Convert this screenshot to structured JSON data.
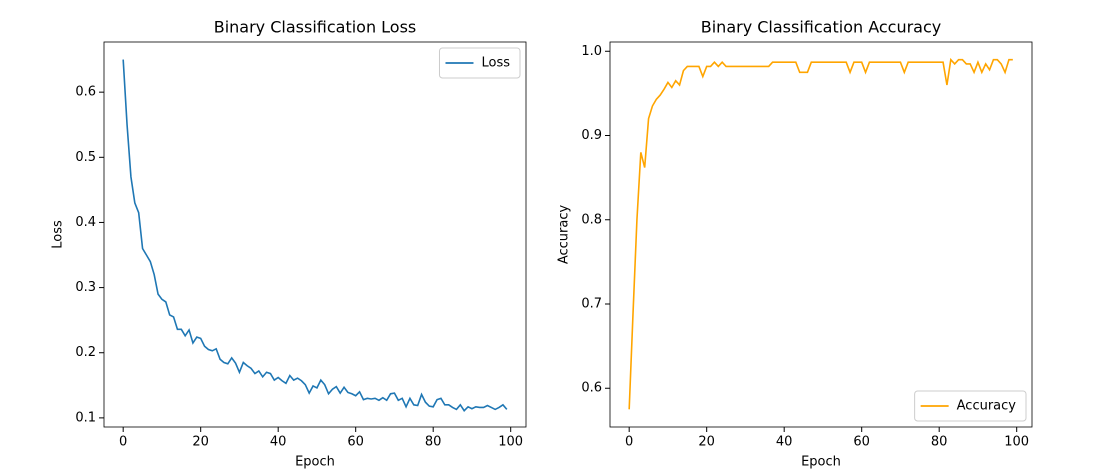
{
  "chart_data": [
    {
      "type": "line",
      "title": "Binary Classification Loss",
      "xlabel": "Epoch",
      "ylabel": "Loss",
      "x": [
        0,
        1,
        2,
        3,
        4,
        5,
        6,
        7,
        8,
        9,
        10,
        11,
        12,
        13,
        14,
        15,
        16,
        17,
        18,
        19,
        20,
        21,
        22,
        23,
        24,
        25,
        26,
        27,
        28,
        29,
        30,
        31,
        32,
        33,
        34,
        35,
        36,
        37,
        38,
        39,
        40,
        41,
        42,
        43,
        44,
        45,
        46,
        47,
        48,
        49,
        50,
        51,
        52,
        53,
        54,
        55,
        56,
        57,
        58,
        59,
        60,
        61,
        62,
        63,
        64,
        65,
        66,
        67,
        68,
        69,
        70,
        71,
        72,
        73,
        74,
        75,
        76,
        77,
        78,
        79,
        80,
        81,
        82,
        83,
        84,
        85,
        86,
        87,
        88,
        89,
        90,
        91,
        92,
        93,
        94,
        95,
        96,
        97,
        98,
        99
      ],
      "series": [
        {
          "name": "Loss",
          "color": "#1f77b4",
          "values": [
            0.65,
            0.55,
            0.47,
            0.43,
            0.415,
            0.36,
            0.35,
            0.34,
            0.32,
            0.29,
            0.282,
            0.278,
            0.258,
            0.255,
            0.236,
            0.236,
            0.226,
            0.235,
            0.215,
            0.224,
            0.222,
            0.21,
            0.205,
            0.203,
            0.206,
            0.19,
            0.185,
            0.183,
            0.192,
            0.184,
            0.17,
            0.185,
            0.18,
            0.176,
            0.168,
            0.172,
            0.163,
            0.17,
            0.168,
            0.158,
            0.162,
            0.157,
            0.153,
            0.165,
            0.158,
            0.161,
            0.157,
            0.151,
            0.138,
            0.149,
            0.146,
            0.158,
            0.151,
            0.137,
            0.144,
            0.148,
            0.138,
            0.147,
            0.139,
            0.137,
            0.134,
            0.14,
            0.128,
            0.13,
            0.129,
            0.13,
            0.127,
            0.131,
            0.127,
            0.137,
            0.138,
            0.127,
            0.13,
            0.117,
            0.13,
            0.12,
            0.119,
            0.136,
            0.124,
            0.118,
            0.117,
            0.128,
            0.13,
            0.12,
            0.12,
            0.116,
            0.113,
            0.12,
            0.111,
            0.117,
            0.114,
            0.117,
            0.116,
            0.116,
            0.119,
            0.116,
            0.113,
            0.116,
            0.12,
            0.113
          ]
        }
      ],
      "xlim": [
        -4.95,
        103.95
      ],
      "ylim": [
        0.086,
        0.677
      ],
      "xticks": [
        0,
        20,
        40,
        60,
        80,
        100
      ],
      "yticks": [
        0.1,
        0.2,
        0.3,
        0.4,
        0.5,
        0.6
      ],
      "legend": "upper right"
    },
    {
      "type": "line",
      "title": "Binary Classification Accuracy",
      "xlabel": "Epoch",
      "ylabel": "Accuracy",
      "x": [
        0,
        1,
        2,
        3,
        4,
        5,
        6,
        7,
        8,
        9,
        10,
        11,
        12,
        13,
        14,
        15,
        16,
        17,
        18,
        19,
        20,
        21,
        22,
        23,
        24,
        25,
        26,
        27,
        28,
        29,
        30,
        31,
        32,
        33,
        34,
        35,
        36,
        37,
        38,
        39,
        40,
        41,
        42,
        43,
        44,
        45,
        46,
        47,
        48,
        49,
        50,
        51,
        52,
        53,
        54,
        55,
        56,
        57,
        58,
        59,
        60,
        61,
        62,
        63,
        64,
        65,
        66,
        67,
        68,
        69,
        70,
        71,
        72,
        73,
        74,
        75,
        76,
        77,
        78,
        79,
        80,
        81,
        82,
        83,
        84,
        85,
        86,
        87,
        88,
        89,
        90,
        91,
        92,
        93,
        94,
        95,
        96,
        97,
        98,
        99
      ],
      "series": [
        {
          "name": "Accuracy",
          "color": "#ffa500",
          "values": [
            0.575,
            0.69,
            0.8,
            0.88,
            0.862,
            0.92,
            0.935,
            0.943,
            0.948,
            0.955,
            0.963,
            0.957,
            0.965,
            0.96,
            0.977,
            0.982,
            0.982,
            0.982,
            0.982,
            0.97,
            0.982,
            0.982,
            0.987,
            0.982,
            0.987,
            0.982,
            0.982,
            0.982,
            0.982,
            0.982,
            0.982,
            0.982,
            0.982,
            0.982,
            0.982,
            0.982,
            0.982,
            0.987,
            0.987,
            0.987,
            0.987,
            0.987,
            0.987,
            0.987,
            0.975,
            0.975,
            0.975,
            0.987,
            0.987,
            0.987,
            0.987,
            0.987,
            0.987,
            0.987,
            0.987,
            0.987,
            0.987,
            0.975,
            0.987,
            0.987,
            0.987,
            0.975,
            0.987,
            0.987,
            0.987,
            0.987,
            0.987,
            0.987,
            0.987,
            0.987,
            0.987,
            0.975,
            0.987,
            0.987,
            0.987,
            0.987,
            0.987,
            0.987,
            0.987,
            0.987,
            0.987,
            0.987,
            0.96,
            0.99,
            0.985,
            0.99,
            0.99,
            0.985,
            0.985,
            0.975,
            0.987,
            0.975,
            0.985,
            0.978,
            0.99,
            0.99,
            0.985,
            0.975,
            0.99,
            0.99
          ]
        }
      ],
      "xlim": [
        -4.95,
        103.95
      ],
      "ylim": [
        0.554,
        1.011
      ],
      "xticks": [
        0,
        20,
        40,
        60,
        80,
        100
      ],
      "yticks": [
        0.6,
        0.7,
        0.8,
        0.9,
        {
          "value": 1,
          "label": "1.0"
        }
      ],
      "legend": "lower right"
    }
  ]
}
